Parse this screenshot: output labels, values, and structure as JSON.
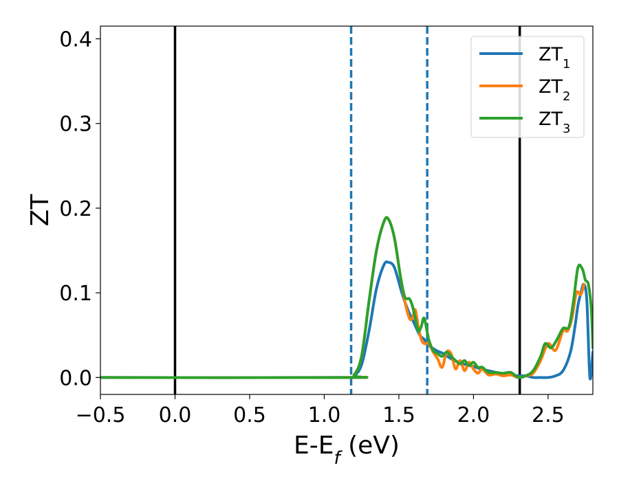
{
  "chart_data": {
    "type": "line",
    "xlabel": "E-E_f (eV)",
    "ylabel": "ZT",
    "xlim": [
      -0.5,
      2.8
    ],
    "ylim": [
      -0.02,
      0.415
    ],
    "x_ticks": [
      -0.5,
      0.0,
      0.5,
      1.0,
      1.5,
      2.0,
      2.5
    ],
    "x_tick_labels": [
      "−0.5",
      "0.0",
      "0.5",
      "1.0",
      "1.5",
      "2.0",
      "2.5"
    ],
    "y_ticks": [
      0.0,
      0.1,
      0.2,
      0.3,
      0.4
    ],
    "y_tick_labels": [
      "0.0",
      "0.1",
      "0.2",
      "0.3",
      "0.4"
    ],
    "grid": false,
    "legend_position": "top-right",
    "vertical_lines": [
      {
        "x": 0.0,
        "style": "solid",
        "color": "#000000"
      },
      {
        "x": 2.31,
        "style": "solid",
        "color": "#000000"
      },
      {
        "x": 1.18,
        "style": "dashed",
        "color": "#1f77b4"
      },
      {
        "x": 1.69,
        "style": "dashed",
        "color": "#1f77b4"
      }
    ],
    "series": [
      {
        "name": "ZT1",
        "legend_base": "ZT",
        "legend_sub": "1",
        "color": "#1f77b4",
        "x": [
          -0.5,
          1.15,
          1.2,
          1.25,
          1.3,
          1.35,
          1.4,
          1.43,
          1.47,
          1.52,
          1.56,
          1.6,
          1.64,
          1.67,
          1.7,
          1.75,
          1.8,
          1.85,
          1.9,
          1.95,
          2.0,
          2.05,
          2.1,
          2.15,
          2.2,
          2.25,
          2.3,
          2.35,
          2.4,
          2.45,
          2.5,
          2.55,
          2.6,
          2.65,
          2.68,
          2.7,
          2.72,
          2.74,
          2.76,
          2.78,
          2.8
        ],
        "values": [
          0.0,
          0.0,
          0.002,
          0.015,
          0.055,
          0.105,
          0.133,
          0.136,
          0.13,
          0.1,
          0.08,
          0.065,
          0.05,
          0.045,
          0.038,
          0.032,
          0.028,
          0.022,
          0.018,
          0.015,
          0.013,
          0.01,
          0.008,
          0.006,
          0.004,
          0.003,
          0.002,
          0.002,
          0.0,
          0.0,
          0.0,
          0.002,
          0.008,
          0.03,
          0.06,
          0.085,
          0.1,
          0.11,
          0.09,
          0.0,
          0.03
        ]
      },
      {
        "name": "ZT2",
        "legend_base": "ZT",
        "legend_sub": "2",
        "color": "#ff7f0e",
        "x": [
          -0.5,
          1.15,
          1.2,
          1.25,
          1.3,
          1.35,
          1.4,
          1.43,
          1.47,
          1.51,
          1.54,
          1.57,
          1.59,
          1.61,
          1.63,
          1.65,
          1.67,
          1.7,
          1.73,
          1.76,
          1.79,
          1.82,
          1.85,
          1.88,
          1.91,
          1.94,
          1.97,
          2.0,
          2.03,
          2.06,
          2.1,
          2.15,
          2.2,
          2.25,
          2.3,
          2.35,
          2.4,
          2.45,
          2.5,
          2.55,
          2.6,
          2.63,
          2.66,
          2.69,
          2.72,
          2.74
        ],
        "values": [
          0.0,
          0.0,
          0.003,
          0.025,
          0.09,
          0.15,
          0.184,
          0.187,
          0.165,
          0.12,
          0.09,
          0.07,
          0.07,
          0.08,
          0.06,
          0.045,
          0.04,
          0.04,
          0.03,
          0.022,
          0.012,
          0.03,
          0.028,
          0.01,
          0.02,
          0.008,
          0.018,
          0.01,
          0.005,
          0.01,
          0.003,
          0.004,
          0.002,
          0.003,
          0.0,
          0.002,
          0.005,
          0.02,
          0.04,
          0.032,
          0.055,
          0.055,
          0.07,
          0.1,
          0.098,
          0.11
        ]
      },
      {
        "name": "ZT3",
        "legend_base": "ZT",
        "legend_sub": "3",
        "color": "#2ca02c",
        "x": [
          -0.5,
          1.15,
          1.2,
          1.25,
          1.3,
          1.35,
          1.4,
          1.43,
          1.47,
          1.51,
          1.54,
          1.57,
          1.59,
          1.61,
          1.63,
          1.65,
          1.67,
          1.7,
          1.73,
          1.76,
          1.79,
          1.82,
          1.85,
          1.88,
          1.91,
          1.94,
          1.97,
          2.0,
          2.03,
          2.06,
          2.1,
          2.15,
          2.2,
          2.25,
          2.3,
          2.35,
          2.4,
          2.45,
          2.48,
          2.52,
          2.56,
          2.6,
          2.64,
          2.67,
          2.7,
          2.73,
          2.75,
          2.77,
          2.79,
          2.8
        ],
        "values": [
          0.0,
          0.0,
          0.003,
          0.025,
          0.09,
          0.15,
          0.184,
          0.187,
          0.165,
          0.12,
          0.095,
          0.093,
          0.085,
          0.07,
          0.055,
          0.06,
          0.07,
          0.045,
          0.032,
          0.028,
          0.025,
          0.03,
          0.025,
          0.02,
          0.016,
          0.02,
          0.014,
          0.018,
          0.012,
          0.012,
          0.006,
          0.006,
          0.005,
          0.006,
          0.0,
          0.002,
          0.008,
          0.025,
          0.04,
          0.035,
          0.045,
          0.058,
          0.06,
          0.09,
          0.13,
          0.128,
          0.115,
          0.11,
          0.08,
          0.035
        ]
      }
    ]
  }
}
